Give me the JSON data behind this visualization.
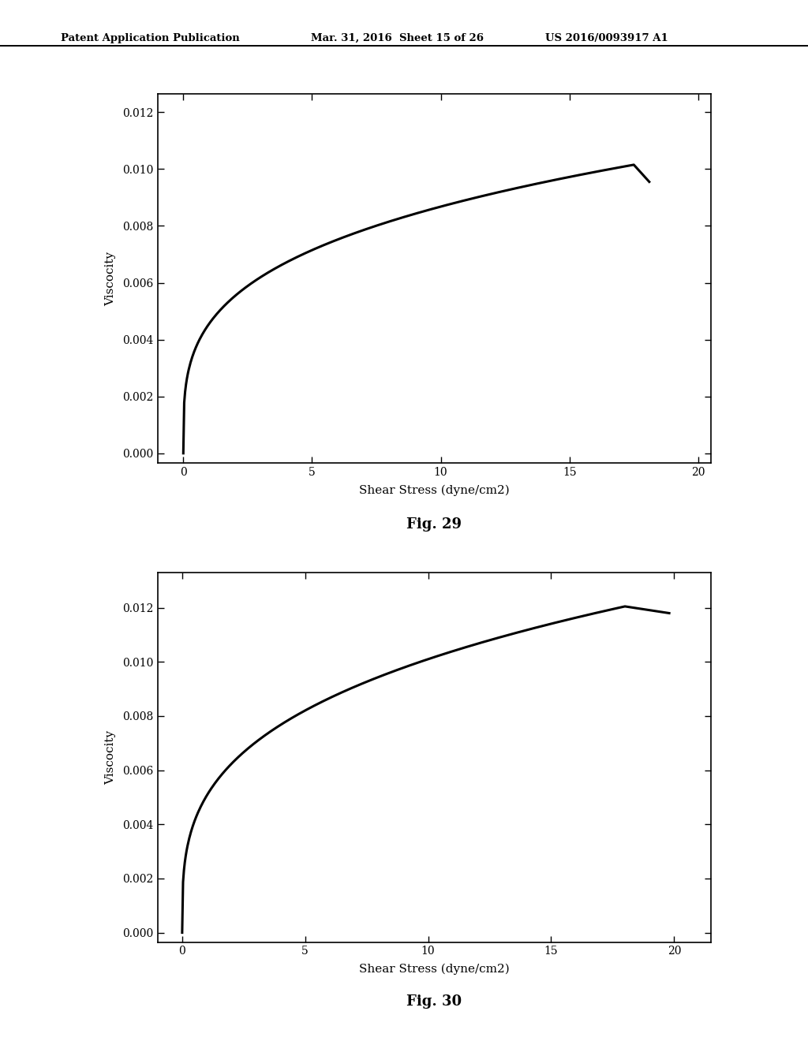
{
  "header_left": "Patent Application Publication",
  "header_mid": "Mar. 31, 2016  Sheet 15 of 26",
  "header_right": "US 2016/0093917 A1",
  "fig29": {
    "xlabel": "Shear Stress (dyne/cm2)",
    "ylabel": "Viscocity",
    "caption": "Fig. 29",
    "xlim": [
      -1.0,
      20.5
    ],
    "ylim": [
      -0.00035,
      0.01265
    ],
    "xticks": [
      0,
      5,
      10,
      15,
      20
    ],
    "yticks": [
      0.0,
      0.002,
      0.004,
      0.006,
      0.008,
      0.01,
      0.012
    ]
  },
  "fig30": {
    "xlabel": "Shear Stress (dyne/cm2)",
    "ylabel": "Viscocity",
    "caption": "Fig. 30",
    "xlim": [
      -1.0,
      21.5
    ],
    "ylim": [
      -0.00035,
      0.0133
    ],
    "xticks": [
      0,
      5,
      10,
      15,
      20
    ],
    "yticks": [
      0.0,
      0.002,
      0.004,
      0.006,
      0.008,
      0.01,
      0.012
    ]
  },
  "line_color": "#000000",
  "line_width": 2.2,
  "bg_color": "#ffffff",
  "text_color": "#000000"
}
